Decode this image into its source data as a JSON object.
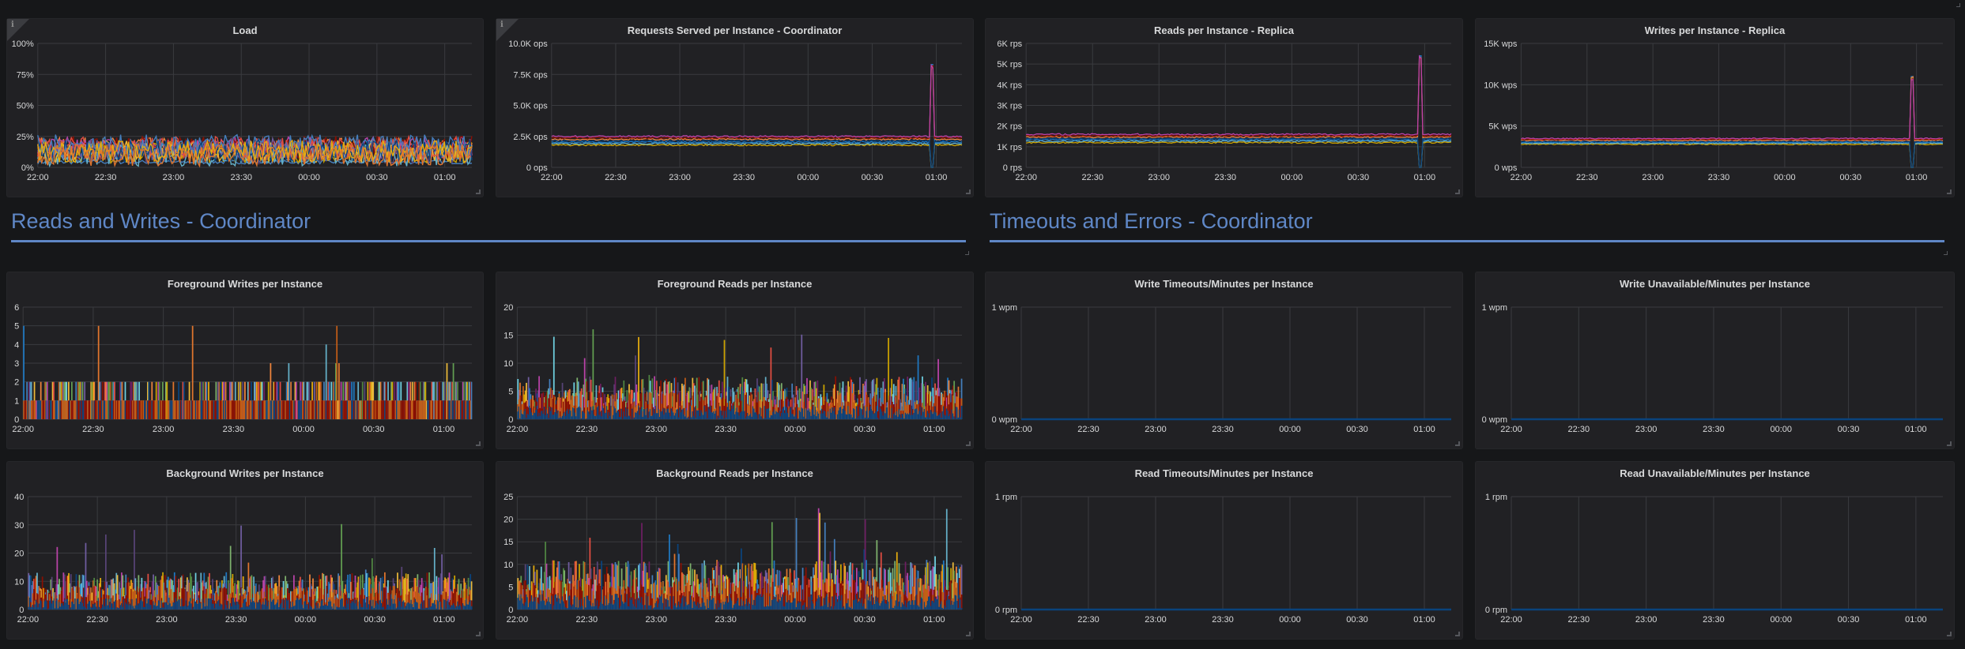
{
  "dashboard": {
    "colors": {
      "background": "#161719",
      "panel": "#212124",
      "row_title": "#5f87c6",
      "grid": "#3a3b3f",
      "axis_text": "#d8d9da"
    },
    "series_palette": [
      "#7eb26d",
      "#eab839",
      "#6ed0e0",
      "#ef843c",
      "#e24d42",
      "#1f78c1",
      "#ba43a9",
      "#705da0",
      "#508642",
      "#cca300",
      "#447ebc",
      "#c15c17",
      "#890f02",
      "#0a437c",
      "#6d1f62",
      "#584477",
      "#e5ac0e",
      "#629e51",
      "#64b0c8",
      "#e0752d"
    ],
    "x_ticks": [
      "22:00",
      "22:30",
      "23:00",
      "23:30",
      "00:00",
      "00:30",
      "01:00"
    ]
  },
  "rows": [
    {
      "title": "Reads and Writes - Coordinator"
    },
    {
      "title": "Timeouts and Errors - Coordinator"
    }
  ],
  "panels": [
    {
      "id": "load",
      "title": "Load",
      "info": "i",
      "y_ticks": [
        "100%",
        "75%",
        "50%",
        "25%",
        "0%"
      ],
      "kind": "noisy-lines"
    },
    {
      "id": "requests",
      "title": "Requests Served per Instance - Coordinator",
      "info": "i",
      "y_ticks": [
        "10.0K ops",
        "7.5K ops",
        "5.0K ops",
        "2.5K ops",
        "0 ops"
      ],
      "kind": "flat-band-spike"
    },
    {
      "id": "reads-replica",
      "title": "Reads per Instance - Replica",
      "y_ticks": [
        "6K rps",
        "5K rps",
        "4K rps",
        "3K rps",
        "2K rps",
        "1K rps",
        "0 rps"
      ],
      "kind": "flat-band-spike"
    },
    {
      "id": "writes-replica",
      "title": "Writes per Instance - Replica",
      "y_ticks": [
        "15K wps",
        "10K wps",
        "5K wps",
        "0 wps"
      ],
      "kind": "flat-band-spike"
    },
    {
      "id": "fg-writes",
      "title": "Foreground Writes per Instance",
      "y_ticks": [
        "6",
        "5",
        "4",
        "3",
        "2",
        "1",
        "0"
      ],
      "kind": "bars"
    },
    {
      "id": "fg-reads",
      "title": "Foreground Reads per Instance",
      "y_ticks": [
        "20",
        "15",
        "10",
        "5",
        "0"
      ],
      "kind": "bars"
    },
    {
      "id": "write-timeouts",
      "title": "Write Timeouts/Minutes per Instance",
      "y_ticks": [
        "1 wpm",
        "0 wpm"
      ],
      "kind": "flat-zero"
    },
    {
      "id": "write-unavailable",
      "title": "Write Unavailable/Minutes per Instance",
      "y_ticks": [
        "1 wpm",
        "0 wpm"
      ],
      "kind": "flat-zero"
    },
    {
      "id": "bg-writes",
      "title": "Background Writes per Instance",
      "y_ticks": [
        "40",
        "30",
        "20",
        "10",
        "0"
      ],
      "kind": "bars"
    },
    {
      "id": "bg-reads",
      "title": "Background Reads per Instance",
      "y_ticks": [
        "25",
        "20",
        "15",
        "10",
        "5",
        "0"
      ],
      "kind": "bars"
    },
    {
      "id": "read-timeouts",
      "title": "Read Timeouts/Minutes per Instance",
      "y_ticks": [
        "1 rpm",
        "0 rpm"
      ],
      "kind": "flat-zero"
    },
    {
      "id": "read-unavailable",
      "title": "Read Unavailable/Minutes per Instance",
      "y_ticks": [
        "1 rpm",
        "0 rpm"
      ],
      "kind": "flat-zero"
    }
  ],
  "chart_data": [
    {
      "type": "line",
      "title": "Load",
      "x": [
        "22:00",
        "22:30",
        "23:00",
        "23:30",
        "00:00",
        "00:30",
        "01:00"
      ],
      "ylim": [
        0,
        100
      ],
      "ylabel": "%",
      "series_summary": {
        "typical_range": [
          2,
          30
        ],
        "peak": 41
      }
    },
    {
      "type": "line",
      "title": "Requests Served per Instance - Coordinator",
      "x": [
        "22:00",
        "22:30",
        "23:00",
        "23:30",
        "00:00",
        "00:30",
        "01:00"
      ],
      "ylim": [
        0,
        10000
      ],
      "ylabel": "ops",
      "series_summary": {
        "typical_range": [
          1800,
          2500
        ],
        "spike_at": "00:58",
        "spike_peak": 8300,
        "spike_dip": 0
      }
    },
    {
      "type": "line",
      "title": "Reads per Instance - Replica",
      "x": [
        "22:00",
        "22:30",
        "23:00",
        "23:30",
        "00:00",
        "00:30",
        "01:00"
      ],
      "ylim": [
        0,
        6000
      ],
      "ylabel": "rps",
      "series_summary": {
        "typical_range": [
          1200,
          1600
        ],
        "spike_at": "00:58",
        "spike_peak": 5400,
        "spike_dip": 0
      }
    },
    {
      "type": "line",
      "title": "Writes per Instance - Replica",
      "x": [
        "22:00",
        "22:30",
        "23:00",
        "23:30",
        "00:00",
        "00:30",
        "01:00"
      ],
      "ylim": [
        0,
        15000
      ],
      "ylabel": "wps",
      "series_summary": {
        "typical_range": [
          2800,
          3500
        ],
        "spike_at": "00:58",
        "spike_peak": 11000,
        "spike_dip": 0
      }
    },
    {
      "type": "bar",
      "title": "Foreground Writes per Instance",
      "x": [
        "22:00",
        "22:30",
        "23:00",
        "23:30",
        "00:00",
        "00:30",
        "01:00"
      ],
      "ylim": [
        0,
        6
      ],
      "series_summary": {
        "typical_range": [
          0,
          2
        ],
        "peak": 5
      }
    },
    {
      "type": "bar",
      "title": "Foreground Reads per Instance",
      "x": [
        "22:00",
        "22:30",
        "23:00",
        "23:30",
        "00:00",
        "00:30",
        "01:00"
      ],
      "ylim": [
        0,
        20
      ],
      "series_summary": {
        "typical_range": [
          0,
          7
        ],
        "peak": 17
      }
    },
    {
      "type": "line",
      "title": "Write Timeouts/Minutes per Instance",
      "x": [
        "22:00",
        "22:30",
        "23:00",
        "23:30",
        "00:00",
        "00:30",
        "01:00"
      ],
      "ylim": [
        0,
        1
      ],
      "ylabel": "wpm",
      "values": [
        0,
        0,
        0,
        0,
        0,
        0,
        0
      ]
    },
    {
      "type": "line",
      "title": "Write Unavailable/Minutes per Instance",
      "x": [
        "22:00",
        "22:30",
        "23:00",
        "23:30",
        "00:00",
        "00:30",
        "01:00"
      ],
      "ylim": [
        0,
        1
      ],
      "ylabel": "wpm",
      "values": [
        0,
        0,
        0,
        0,
        0,
        0,
        0
      ]
    },
    {
      "type": "bar",
      "title": "Background Writes per Instance",
      "x": [
        "22:00",
        "22:30",
        "23:00",
        "23:30",
        "00:00",
        "00:30",
        "01:00"
      ],
      "ylim": [
        0,
        40
      ],
      "series_summary": {
        "typical_range": [
          0,
          12
        ],
        "peak": 31
      }
    },
    {
      "type": "bar",
      "title": "Background Reads per Instance",
      "x": [
        "22:00",
        "22:30",
        "23:00",
        "23:30",
        "00:00",
        "00:30",
        "01:00"
      ],
      "ylim": [
        0,
        25
      ],
      "series_summary": {
        "typical_range": [
          0,
          10
        ],
        "peak": 23
      }
    },
    {
      "type": "line",
      "title": "Read Timeouts/Minutes per Instance",
      "x": [
        "22:00",
        "22:30",
        "23:00",
        "23:30",
        "00:00",
        "00:30",
        "01:00"
      ],
      "ylim": [
        0,
        1
      ],
      "ylabel": "rpm",
      "values": [
        0,
        0,
        0,
        0,
        0,
        0,
        0
      ]
    },
    {
      "type": "line",
      "title": "Read Unavailable/Minutes per Instance",
      "x": [
        "22:00",
        "22:30",
        "23:00",
        "23:30",
        "00:00",
        "00:30",
        "01:00"
      ],
      "ylim": [
        0,
        1
      ],
      "ylabel": "rpm",
      "values": [
        0,
        0,
        0,
        0,
        0,
        0,
        0
      ]
    }
  ]
}
